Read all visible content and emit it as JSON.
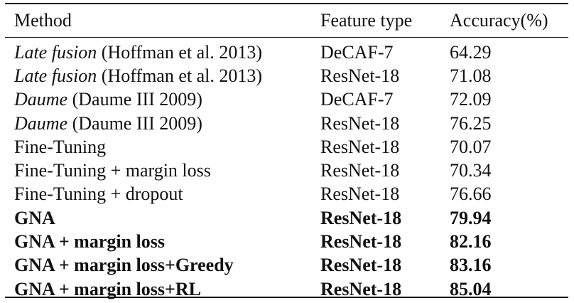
{
  "table": {
    "headers": {
      "method": "Method",
      "feature": "Feature type",
      "accuracy": "Accuracy(%)"
    },
    "rows": [
      {
        "method_italic": "Late fusion",
        "method_rest": " (Hoffman et al. 2013)",
        "feature": "DeCAF-7",
        "accuracy": "64.29",
        "bold": false
      },
      {
        "method_italic": "Late fusion",
        "method_rest": " (Hoffman et al. 2013)",
        "feature": "ResNet-18",
        "accuracy": "71.08",
        "bold": false
      },
      {
        "method_italic": "Daume",
        "method_rest": " (Daume III 2009)",
        "feature": "DeCAF-7",
        "accuracy": "72.09",
        "bold": false
      },
      {
        "method_italic": "Daume",
        "method_rest": " (Daume III 2009)",
        "feature": "ResNet-18",
        "accuracy": "76.25",
        "bold": false
      },
      {
        "method_italic": "",
        "method_rest": "Fine-Tuning",
        "feature": "ResNet-18",
        "accuracy": "70.07",
        "bold": false
      },
      {
        "method_italic": "",
        "method_rest": "Fine-Tuning + margin loss",
        "feature": "ResNet-18",
        "accuracy": "70.34",
        "bold": false
      },
      {
        "method_italic": "",
        "method_rest": "Fine-Tuning + dropout",
        "feature": "ResNet-18",
        "accuracy": "76.66",
        "bold": false
      },
      {
        "method_italic": "",
        "method_rest": "GNA",
        "feature": "ResNet-18",
        "accuracy": "79.94",
        "bold": true
      },
      {
        "method_italic": "",
        "method_rest": "GNA + margin loss",
        "feature": "ResNet-18",
        "accuracy": "82.16",
        "bold": true
      },
      {
        "method_italic": "",
        "method_rest": "GNA + margin loss+Greedy",
        "feature": "ResNet-18",
        "accuracy": "83.16",
        "bold": true
      },
      {
        "method_italic": "",
        "method_rest": "GNA + margin loss+RL",
        "feature": "ResNet-18",
        "accuracy": "85.04",
        "bold": true
      }
    ]
  }
}
